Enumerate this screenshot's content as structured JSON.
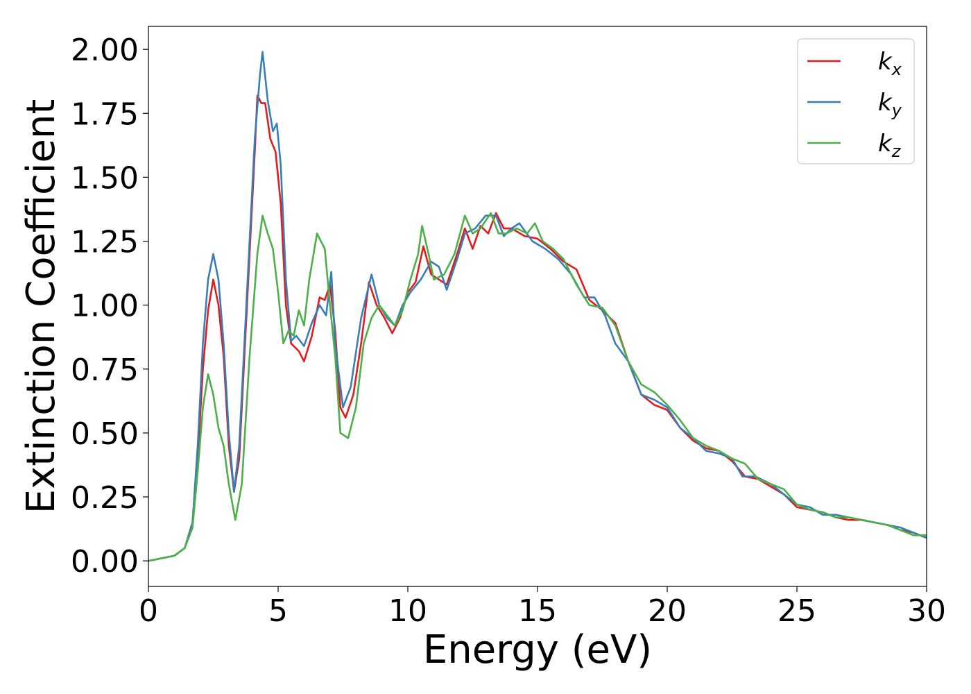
{
  "chart_data": {
    "type": "line",
    "title": "",
    "xlabel": "Energy (eV)",
    "ylabel": "Extinction Coefficient",
    "xlim": [
      0,
      30
    ],
    "ylim": [
      -0.1,
      2.09
    ],
    "xticks": [
      0,
      5,
      10,
      15,
      20,
      25,
      30
    ],
    "xtick_labels": [
      "0",
      "5",
      "10",
      "15",
      "20",
      "25",
      "30"
    ],
    "yticks": [
      0.0,
      0.25,
      0.5,
      0.75,
      1.0,
      1.25,
      1.5,
      1.75,
      2.0
    ],
    "ytick_labels": [
      "0.00",
      "0.25",
      "0.50",
      "0.75",
      "1.00",
      "1.25",
      "1.50",
      "1.75",
      "2.00"
    ],
    "grid": false,
    "legend_position": "top-right",
    "series": [
      {
        "name": "k",
        "subscript": "x",
        "color": "#e41a1c",
        "points": [
          [
            0,
            0.0
          ],
          [
            0.5,
            0.01
          ],
          [
            1,
            0.02
          ],
          [
            1.4,
            0.05
          ],
          [
            1.7,
            0.15
          ],
          [
            1.9,
            0.4
          ],
          [
            2.1,
            0.75
          ],
          [
            2.3,
            0.98
          ],
          [
            2.5,
            1.1
          ],
          [
            2.7,
            1.0
          ],
          [
            2.9,
            0.8
          ],
          [
            3.1,
            0.45
          ],
          [
            3.3,
            0.27
          ],
          [
            3.5,
            0.4
          ],
          [
            3.8,
            1.0
          ],
          [
            4.1,
            1.6
          ],
          [
            4.2,
            1.82
          ],
          [
            4.35,
            1.79
          ],
          [
            4.5,
            1.79
          ],
          [
            4.7,
            1.65
          ],
          [
            4.9,
            1.6
          ],
          [
            5.1,
            1.4
          ],
          [
            5.3,
            1.0
          ],
          [
            5.5,
            0.85
          ],
          [
            5.8,
            0.82
          ],
          [
            6.0,
            0.78
          ],
          [
            6.3,
            0.88
          ],
          [
            6.6,
            1.03
          ],
          [
            6.8,
            1.02
          ],
          [
            7.0,
            1.08
          ],
          [
            7.2,
            0.9
          ],
          [
            7.4,
            0.6
          ],
          [
            7.6,
            0.56
          ],
          [
            7.9,
            0.65
          ],
          [
            8.2,
            0.85
          ],
          [
            8.5,
            1.09
          ],
          [
            8.8,
            1.0
          ],
          [
            9.1,
            0.95
          ],
          [
            9.4,
            0.89
          ],
          [
            9.7,
            0.95
          ],
          [
            10.0,
            1.05
          ],
          [
            10.3,
            1.09
          ],
          [
            10.6,
            1.23
          ],
          [
            10.9,
            1.12
          ],
          [
            11.2,
            1.1
          ],
          [
            11.5,
            1.08
          ],
          [
            11.9,
            1.2
          ],
          [
            12.2,
            1.3
          ],
          [
            12.5,
            1.22
          ],
          [
            12.8,
            1.31
          ],
          [
            13.1,
            1.28
          ],
          [
            13.4,
            1.36
          ],
          [
            13.7,
            1.3
          ],
          [
            14.0,
            1.3
          ],
          [
            14.5,
            1.27
          ],
          [
            15.0,
            1.26
          ],
          [
            15.5,
            1.22
          ],
          [
            16.0,
            1.17
          ],
          [
            16.5,
            1.14
          ],
          [
            17.0,
            1.02
          ],
          [
            17.5,
            0.98
          ],
          [
            18.0,
            0.93
          ],
          [
            18.5,
            0.78
          ],
          [
            19.0,
            0.65
          ],
          [
            19.5,
            0.61
          ],
          [
            20.0,
            0.59
          ],
          [
            20.5,
            0.52
          ],
          [
            21.0,
            0.47
          ],
          [
            21.5,
            0.44
          ],
          [
            22.0,
            0.43
          ],
          [
            22.5,
            0.39
          ],
          [
            23.0,
            0.33
          ],
          [
            23.5,
            0.32
          ],
          [
            24.0,
            0.29
          ],
          [
            24.5,
            0.26
          ],
          [
            25.0,
            0.21
          ],
          [
            25.5,
            0.2
          ],
          [
            26.0,
            0.19
          ],
          [
            26.5,
            0.17
          ],
          [
            27.0,
            0.16
          ],
          [
            27.5,
            0.16
          ],
          [
            28.0,
            0.15
          ],
          [
            28.5,
            0.14
          ],
          [
            29.0,
            0.12
          ],
          [
            29.5,
            0.11
          ],
          [
            30.0,
            0.09
          ]
        ]
      },
      {
        "name": "k",
        "subscript": "y",
        "color": "#377eb8",
        "points": [
          [
            0,
            0.0
          ],
          [
            0.5,
            0.01
          ],
          [
            1,
            0.02
          ],
          [
            1.4,
            0.05
          ],
          [
            1.7,
            0.15
          ],
          [
            1.9,
            0.45
          ],
          [
            2.1,
            0.85
          ],
          [
            2.3,
            1.1
          ],
          [
            2.5,
            1.2
          ],
          [
            2.7,
            1.1
          ],
          [
            2.9,
            0.85
          ],
          [
            3.1,
            0.5
          ],
          [
            3.3,
            0.27
          ],
          [
            3.5,
            0.45
          ],
          [
            3.8,
            1.05
          ],
          [
            4.1,
            1.65
          ],
          [
            4.3,
            1.9
          ],
          [
            4.4,
            1.99
          ],
          [
            4.6,
            1.8
          ],
          [
            4.8,
            1.68
          ],
          [
            4.95,
            1.71
          ],
          [
            5.1,
            1.55
          ],
          [
            5.3,
            1.1
          ],
          [
            5.5,
            0.86
          ],
          [
            5.7,
            0.88
          ],
          [
            6.0,
            0.84
          ],
          [
            6.3,
            0.93
          ],
          [
            6.6,
            1.0
          ],
          [
            6.85,
            0.96
          ],
          [
            7.05,
            1.13
          ],
          [
            7.2,
            0.85
          ],
          [
            7.5,
            0.6
          ],
          [
            7.8,
            0.68
          ],
          [
            8.2,
            0.95
          ],
          [
            8.6,
            1.12
          ],
          [
            8.9,
            1.0
          ],
          [
            9.2,
            0.95
          ],
          [
            9.5,
            0.92
          ],
          [
            9.8,
            1.0
          ],
          [
            10.1,
            1.05
          ],
          [
            10.5,
            1.1
          ],
          [
            10.9,
            1.17
          ],
          [
            11.2,
            1.15
          ],
          [
            11.5,
            1.06
          ],
          [
            11.9,
            1.18
          ],
          [
            12.2,
            1.28
          ],
          [
            12.6,
            1.3
          ],
          [
            13.0,
            1.35
          ],
          [
            13.4,
            1.35
          ],
          [
            13.7,
            1.27
          ],
          [
            14.0,
            1.3
          ],
          [
            14.3,
            1.32
          ],
          [
            14.8,
            1.25
          ],
          [
            15.3,
            1.22
          ],
          [
            15.8,
            1.18
          ],
          [
            16.3,
            1.12
          ],
          [
            16.8,
            1.03
          ],
          [
            17.2,
            1.03
          ],
          [
            17.6,
            0.96
          ],
          [
            18.0,
            0.85
          ],
          [
            18.5,
            0.78
          ],
          [
            19.0,
            0.65
          ],
          [
            19.5,
            0.63
          ],
          [
            20.0,
            0.6
          ],
          [
            20.5,
            0.52
          ],
          [
            21.0,
            0.48
          ],
          [
            21.5,
            0.43
          ],
          [
            22.0,
            0.42
          ],
          [
            22.5,
            0.4
          ],
          [
            22.9,
            0.33
          ],
          [
            23.4,
            0.33
          ],
          [
            24.0,
            0.3
          ],
          [
            24.5,
            0.26
          ],
          [
            25.0,
            0.22
          ],
          [
            25.5,
            0.21
          ],
          [
            26.0,
            0.18
          ],
          [
            26.5,
            0.18
          ],
          [
            27.0,
            0.17
          ],
          [
            27.5,
            0.16
          ],
          [
            28.0,
            0.15
          ],
          [
            28.5,
            0.14
          ],
          [
            29.0,
            0.13
          ],
          [
            29.5,
            0.11
          ],
          [
            30.0,
            0.09
          ]
        ]
      },
      {
        "name": "k",
        "subscript": "z",
        "color": "#4daf4a",
        "points": [
          [
            0,
            0.0
          ],
          [
            0.5,
            0.01
          ],
          [
            1,
            0.02
          ],
          [
            1.4,
            0.05
          ],
          [
            1.7,
            0.13
          ],
          [
            1.9,
            0.35
          ],
          [
            2.1,
            0.6
          ],
          [
            2.3,
            0.73
          ],
          [
            2.5,
            0.65
          ],
          [
            2.7,
            0.52
          ],
          [
            2.9,
            0.45
          ],
          [
            3.1,
            0.3
          ],
          [
            3.35,
            0.16
          ],
          [
            3.6,
            0.3
          ],
          [
            3.9,
            0.8
          ],
          [
            4.2,
            1.2
          ],
          [
            4.4,
            1.35
          ],
          [
            4.6,
            1.28
          ],
          [
            4.8,
            1.22
          ],
          [
            5.0,
            1.05
          ],
          [
            5.2,
            0.85
          ],
          [
            5.4,
            0.9
          ],
          [
            5.6,
            0.88
          ],
          [
            5.8,
            0.98
          ],
          [
            6.0,
            0.92
          ],
          [
            6.2,
            1.1
          ],
          [
            6.5,
            1.28
          ],
          [
            6.8,
            1.22
          ],
          [
            7.0,
            1.0
          ],
          [
            7.2,
            0.8
          ],
          [
            7.4,
            0.5
          ],
          [
            7.7,
            0.48
          ],
          [
            8.0,
            0.6
          ],
          [
            8.3,
            0.85
          ],
          [
            8.6,
            0.95
          ],
          [
            8.9,
            1.0
          ],
          [
            9.2,
            0.96
          ],
          [
            9.5,
            0.92
          ],
          [
            9.8,
            0.98
          ],
          [
            10.1,
            1.1
          ],
          [
            10.4,
            1.2
          ],
          [
            10.55,
            1.31
          ],
          [
            10.8,
            1.2
          ],
          [
            11.0,
            1.1
          ],
          [
            11.4,
            1.12
          ],
          [
            11.8,
            1.2
          ],
          [
            12.2,
            1.35
          ],
          [
            12.5,
            1.28
          ],
          [
            12.8,
            1.3
          ],
          [
            13.2,
            1.36
          ],
          [
            13.5,
            1.28
          ],
          [
            13.8,
            1.28
          ],
          [
            14.2,
            1.3
          ],
          [
            14.6,
            1.28
          ],
          [
            14.9,
            1.32
          ],
          [
            15.2,
            1.25
          ],
          [
            15.6,
            1.22
          ],
          [
            16.0,
            1.18
          ],
          [
            16.5,
            1.08
          ],
          [
            17.0,
            1.0
          ],
          [
            17.5,
            0.99
          ],
          [
            18.0,
            0.92
          ],
          [
            18.5,
            0.78
          ],
          [
            19.0,
            0.69
          ],
          [
            19.5,
            0.66
          ],
          [
            20.0,
            0.61
          ],
          [
            20.5,
            0.55
          ],
          [
            21.0,
            0.48
          ],
          [
            21.5,
            0.45
          ],
          [
            22.0,
            0.43
          ],
          [
            22.5,
            0.4
          ],
          [
            23.0,
            0.38
          ],
          [
            23.5,
            0.32
          ],
          [
            24.0,
            0.3
          ],
          [
            24.5,
            0.28
          ],
          [
            25.0,
            0.22
          ],
          [
            25.5,
            0.2
          ],
          [
            26.0,
            0.19
          ],
          [
            26.5,
            0.17
          ],
          [
            27.0,
            0.17
          ],
          [
            27.5,
            0.16
          ],
          [
            28.0,
            0.15
          ],
          [
            28.5,
            0.14
          ],
          [
            29.0,
            0.12
          ],
          [
            29.5,
            0.1
          ],
          [
            30.0,
            0.1
          ]
        ]
      }
    ]
  }
}
